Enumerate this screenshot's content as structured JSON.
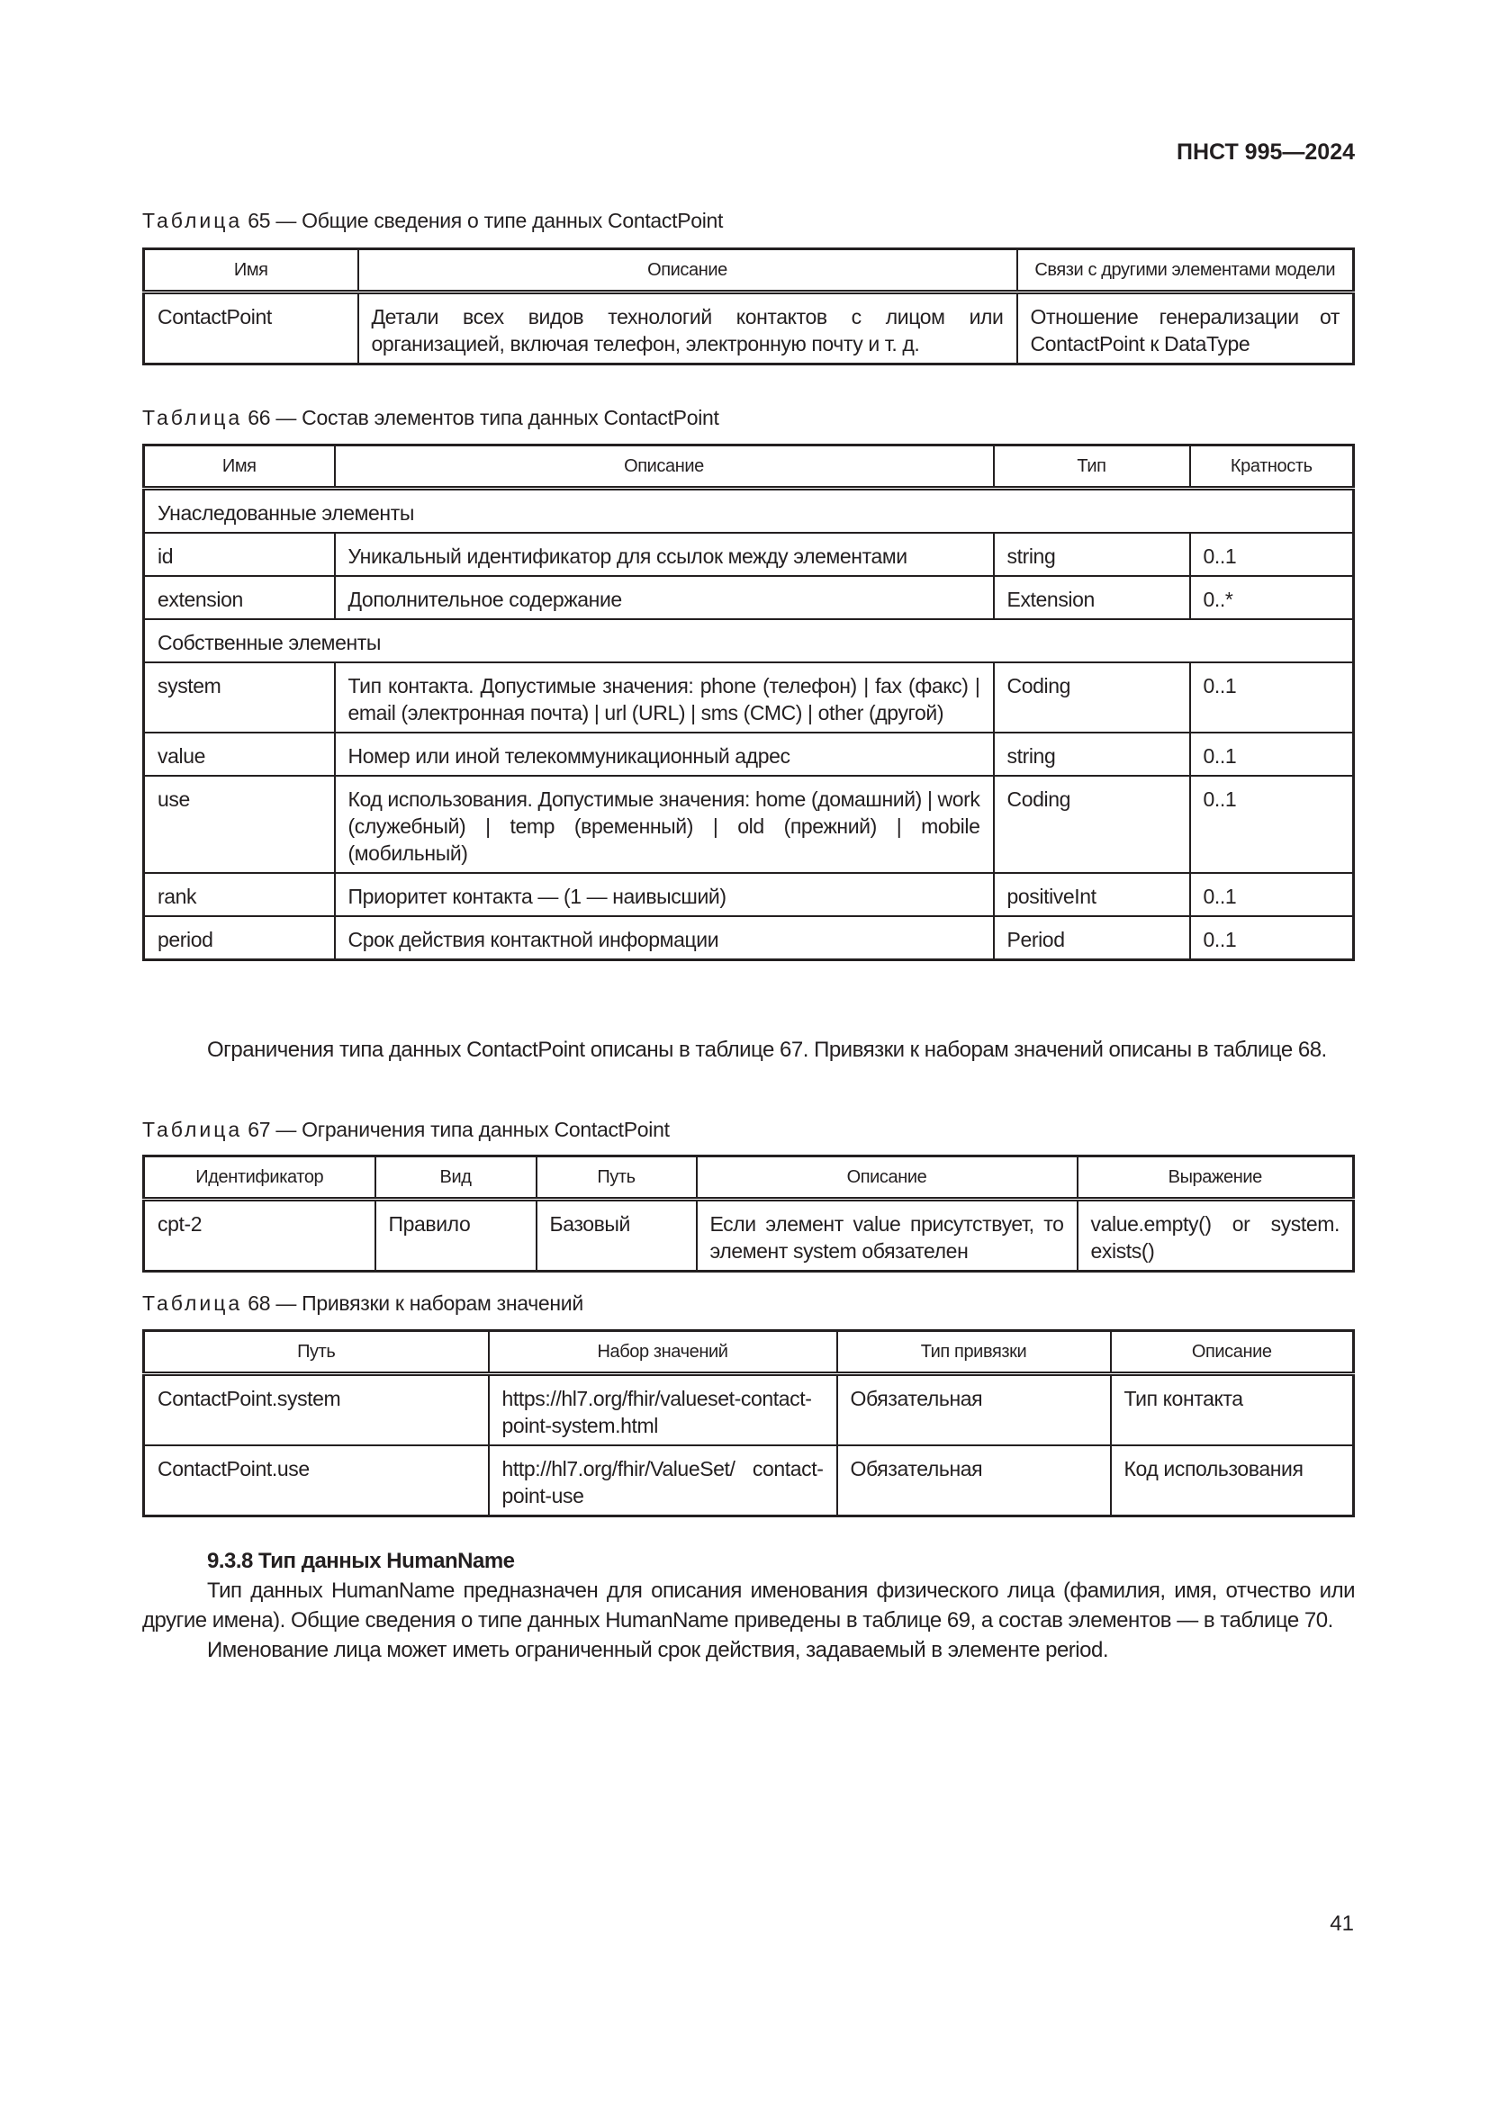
{
  "header": {
    "doc_code": "ПНСТ 995—2024"
  },
  "table65": {
    "caption_prefix": "Таблица",
    "caption_rest": " 65 — Общие сведения о типе данных ContactPoint",
    "columns": [
      "Имя",
      "Описание",
      "Связи с другими элементами модели"
    ],
    "rows": [
      [
        "ContactPoint",
        "Детали всех видов технологий контактов с лицом или организацией, включая телефон, электронную почту и т. д.",
        "Отношение генерализации от ContactPoint к DataType"
      ]
    ]
  },
  "table66": {
    "caption_prefix": "Таблица",
    "caption_rest": " 66 — Состав элементов типа данных ContactPoint",
    "columns": [
      "Имя",
      "Описание",
      "Тип",
      "Кратность"
    ],
    "rows": [
      {
        "section": "Унаследованные элементы"
      },
      {
        "cells": [
          "id",
          "Уникальный идентификатор для ссылок между элементами",
          "string",
          "0..1"
        ]
      },
      {
        "cells": [
          "extension",
          "Дополнительное содержание",
          "Extension",
          "0..*"
        ]
      },
      {
        "section": "Собственные элементы"
      },
      {
        "cells": [
          "system",
          "Тип контакта. Допустимые значения: phone (телефон) | fax (факс) | email (электронная почта) | url (URL) | sms (СМС) | other (другой)",
          "Coding",
          "0..1"
        ]
      },
      {
        "cells": [
          "value",
          "Номер или иной телекоммуникационный адрес",
          "string",
          "0..1"
        ]
      },
      {
        "cells": [
          "use",
          "Код использования. Допустимые значения: home (домашний) | work (служебный) | temp (временный) | old (прежний) | mobile (мобильный)",
          "Coding",
          "0..1"
        ]
      },
      {
        "cells": [
          "rank",
          "Приоритет контакта — (1 — наивысший)",
          "positiveInt",
          "0..1"
        ]
      },
      {
        "cells": [
          "period",
          "Срок действия контактной информации",
          "Period",
          "0..1"
        ]
      }
    ]
  },
  "paragraph1": "Ограничения типа данных ContactPoint описаны в таблице 67. Привязки к наборам значений описаны в таблице 68.",
  "table67": {
    "caption_prefix": "Таблица",
    "caption_rest": " 67 — Ограничения типа данных ContactPoint",
    "columns": [
      "Идентификатор",
      "Вид",
      "Путь",
      "Описание",
      "Выражение"
    ],
    "rows": [
      [
        "cpt-2",
        "Правило",
        "Базовый",
        "Если элемент value присутствует, то элемент system обязателен",
        "value.empty() or system. exists()"
      ]
    ]
  },
  "table68": {
    "caption_prefix": "Таблица",
    "caption_rest": " 68 — Привязки к наборам значений",
    "columns": [
      "Путь",
      "Набор значений",
      "Тип привязки",
      "Описание"
    ],
    "rows": [
      [
        "ContactPoint.system",
        "https://hl7.org/fhir/valueset-contact-point-system.html",
        "Обязательная",
        "Тип контакта"
      ],
      [
        "ContactPoint.use",
        "http://hl7.org/fhir/ValueSet/ contact-point-use",
        "Обязательная",
        "Код использования"
      ]
    ]
  },
  "section": {
    "heading": "9.3.8 Тип данных HumanName",
    "paragraphs": [
      "Тип данных HumanName предназначен для описания именования физического лица (фамилия, имя, отчество или другие имена). Общие сведения о типе данных HumanName приведены в таблице 69, а состав элементов — в таблице 70.",
      "Именование лица может иметь ограниченный срок действия, задаваемый в элементе period."
    ]
  },
  "page_number": "41"
}
